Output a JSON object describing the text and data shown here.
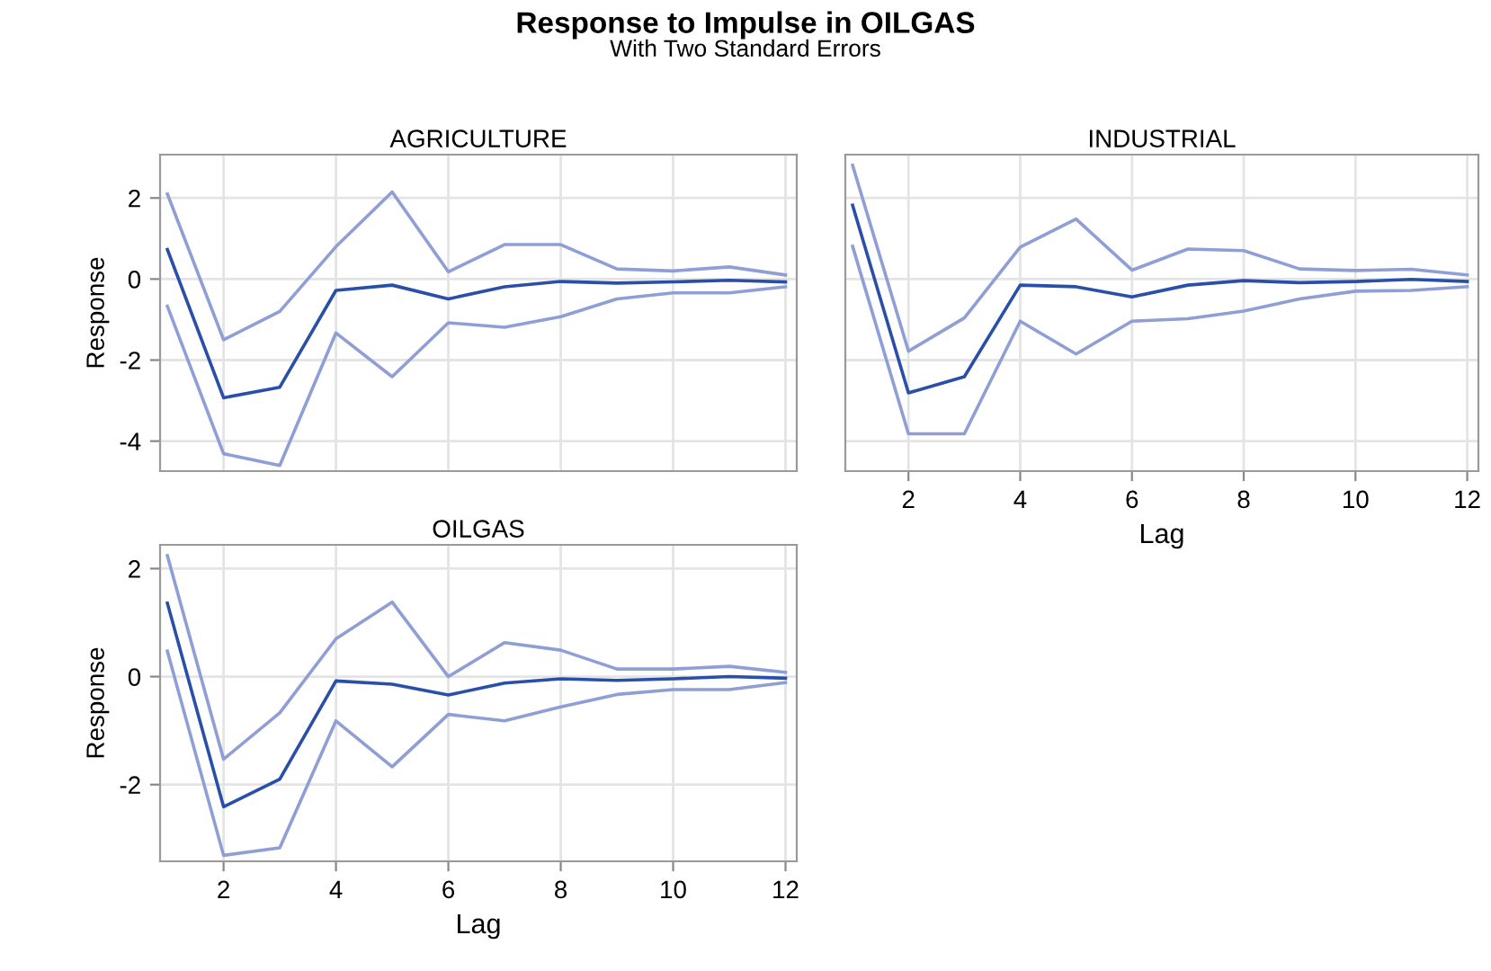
{
  "chart_data": [
    {
      "type": "line",
      "title": "AGRICULTURE",
      "ylabel": "Response",
      "annotations": [
        "Response to Impulse in OILGAS",
        "With Two Standard Errors"
      ],
      "x": [
        1,
        2,
        3,
        4,
        5,
        6,
        7,
        8,
        9,
        10,
        11,
        12
      ],
      "xlim": [
        0.87,
        12.2
      ],
      "xticks": [
        2,
        4,
        6,
        8,
        10,
        12
      ],
      "ylim": [
        -4.74,
        3.07
      ],
      "yticks": [
        -4,
        -2,
        0,
        2
      ],
      "grid": true,
      "tick_labels": "y",
      "line_style": "solid",
      "marker": "none",
      "series": [
        {
          "color": "#8f9fd6",
          "values": [
            2.1,
            -1.5,
            -0.8,
            0.8,
            2.15,
            0.18,
            0.85,
            0.85,
            0.25,
            0.2,
            0.3,
            0.1
          ]
        },
        {
          "color": "#2a4fa8",
          "values": [
            0.73,
            -2.93,
            -2.67,
            -0.28,
            -0.15,
            -0.49,
            -0.19,
            -0.06,
            -0.1,
            -0.07,
            -0.03,
            -0.07
          ]
        },
        {
          "color": "#8f9fd6",
          "values": [
            -0.67,
            -4.31,
            -4.6,
            -1.33,
            -2.41,
            -1.08,
            -1.19,
            -0.93,
            -0.49,
            -0.34,
            -0.34,
            -0.19
          ]
        }
      ]
    },
    {
      "type": "line",
      "title": "INDUSTRIAL",
      "xlabel": "Lag",
      "x": [
        1,
        2,
        3,
        4,
        5,
        6,
        7,
        8,
        9,
        10,
        11,
        12
      ],
      "xlim": [
        0.87,
        12.2
      ],
      "xticks": [
        2,
        4,
        6,
        8,
        10,
        12
      ],
      "ylim": [
        -4.74,
        3.07
      ],
      "yticks": [
        -4,
        -2,
        0,
        2
      ],
      "grid": true,
      "tick_labels": "x",
      "line_style": "solid",
      "marker": "none",
      "series": [
        {
          "color": "#8f9fd6",
          "values": [
            2.81,
            -1.78,
            -0.96,
            0.79,
            1.48,
            0.22,
            0.74,
            0.7,
            0.25,
            0.21,
            0.24,
            0.1
          ]
        },
        {
          "color": "#2a4fa8",
          "values": [
            1.82,
            -2.81,
            -2.41,
            -0.15,
            -0.19,
            -0.44,
            -0.15,
            -0.04,
            -0.09,
            -0.06,
            -0.01,
            -0.06
          ]
        },
        {
          "color": "#8f9fd6",
          "values": [
            0.81,
            -3.82,
            -3.82,
            -1.04,
            -1.85,
            -1.04,
            -0.98,
            -0.79,
            -0.49,
            -0.3,
            -0.28,
            -0.19
          ]
        }
      ]
    },
    {
      "type": "line",
      "title": "OILGAS",
      "xlabel": "Lag",
      "ylabel": "Response",
      "x": [
        1,
        2,
        3,
        4,
        5,
        6,
        7,
        8,
        9,
        10,
        11,
        12
      ],
      "xlim": [
        0.87,
        12.2
      ],
      "xticks": [
        2,
        4,
        6,
        8,
        10,
        12
      ],
      "ylim": [
        -3.42,
        2.44
      ],
      "yticks": [
        -2,
        0,
        2
      ],
      "grid": true,
      "line_style": "solid",
      "marker": "none",
      "series": [
        {
          "color": "#8f9fd6",
          "values": [
            2.24,
            -1.53,
            -0.67,
            0.7,
            1.38,
            0.0,
            0.63,
            0.49,
            0.14,
            0.14,
            0.19,
            0.08
          ]
        },
        {
          "color": "#2a4fa8",
          "values": [
            1.36,
            -2.41,
            -1.9,
            -0.08,
            -0.14,
            -0.34,
            -0.12,
            -0.04,
            -0.07,
            -0.04,
            0.0,
            -0.03
          ]
        },
        {
          "color": "#8f9fd6",
          "values": [
            0.47,
            -3.31,
            -3.17,
            -0.82,
            -1.67,
            -0.7,
            -0.82,
            -0.56,
            -0.33,
            -0.24,
            -0.24,
            -0.11
          ]
        }
      ]
    }
  ]
}
